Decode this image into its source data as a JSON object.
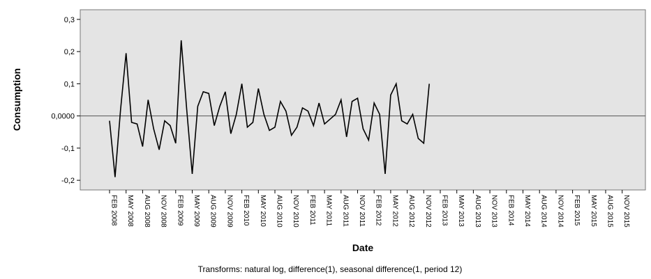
{
  "chart_data": {
    "type": "line",
    "title": "",
    "xlabel": "Date",
    "ylabel": "Consumption",
    "footnote": "Transforms: natural log, difference(1), seasonal difference(1, period 12)",
    "ylim": [
      -0.23,
      0.33
    ],
    "reference_line_y": 0,
    "y_ticks": [
      0.3,
      0.2,
      0.1,
      0,
      -0.1,
      -0.2
    ],
    "y_tick_labels": [
      "0,3",
      "0,2",
      "0,1",
      "0,0000",
      "-0,1",
      "-0,2"
    ],
    "x_tick_labels": [
      "FEB 2008",
      "MAY 2008",
      "AUG 2008",
      "NOV 2008",
      "FEB 2009",
      "MAY 2009",
      "AUG 2009",
      "NOV 2009",
      "FEB 2010",
      "MAY 2010",
      "AUG 2010",
      "NOV 2010",
      "FEB 2011",
      "MAY 2011",
      "AUG 2011",
      "NOV 2011",
      "FEB 2012",
      "MAY 2012",
      "AUG 2012",
      "NOV 2012",
      "FEB 2013",
      "MAY 2013",
      "AUG 2013",
      "NOV 2013",
      "FEB 2014",
      "MAY 2014",
      "AUG 2014",
      "NOV 2014",
      "FEB 2015",
      "MAY 2015",
      "AUG 2015",
      "NOV 2015"
    ],
    "grid": false,
    "legend": "none",
    "colors": {
      "line": "#000000",
      "plot_background": "#e4e4e4",
      "reference_line": "#555555"
    },
    "series": [
      {
        "start": "FEB 2008",
        "frequency": "monthly",
        "values": [
          -0.015,
          -0.19,
          0.02,
          0.195,
          -0.02,
          -0.025,
          -0.095,
          0.05,
          -0.04,
          -0.105,
          -0.015,
          -0.03,
          -0.085,
          0.235,
          0.02,
          -0.18,
          0.03,
          0.075,
          0.07,
          -0.03,
          0.03,
          0.075,
          -0.055,
          0.005,
          0.1,
          -0.035,
          -0.02,
          0.085,
          0.005,
          -0.045,
          -0.035,
          0.045,
          0.015,
          -0.06,
          -0.035,
          0.025,
          0.015,
          -0.03,
          0.04,
          -0.025,
          -0.01,
          0.005,
          0.05,
          -0.065,
          0.045,
          0.055,
          -0.04,
          -0.075,
          0.04,
          0.005,
          -0.18,
          0.065,
          0.1,
          -0.015,
          -0.025,
          0.005,
          -0.07,
          -0.085,
          0.1
        ]
      }
    ]
  }
}
